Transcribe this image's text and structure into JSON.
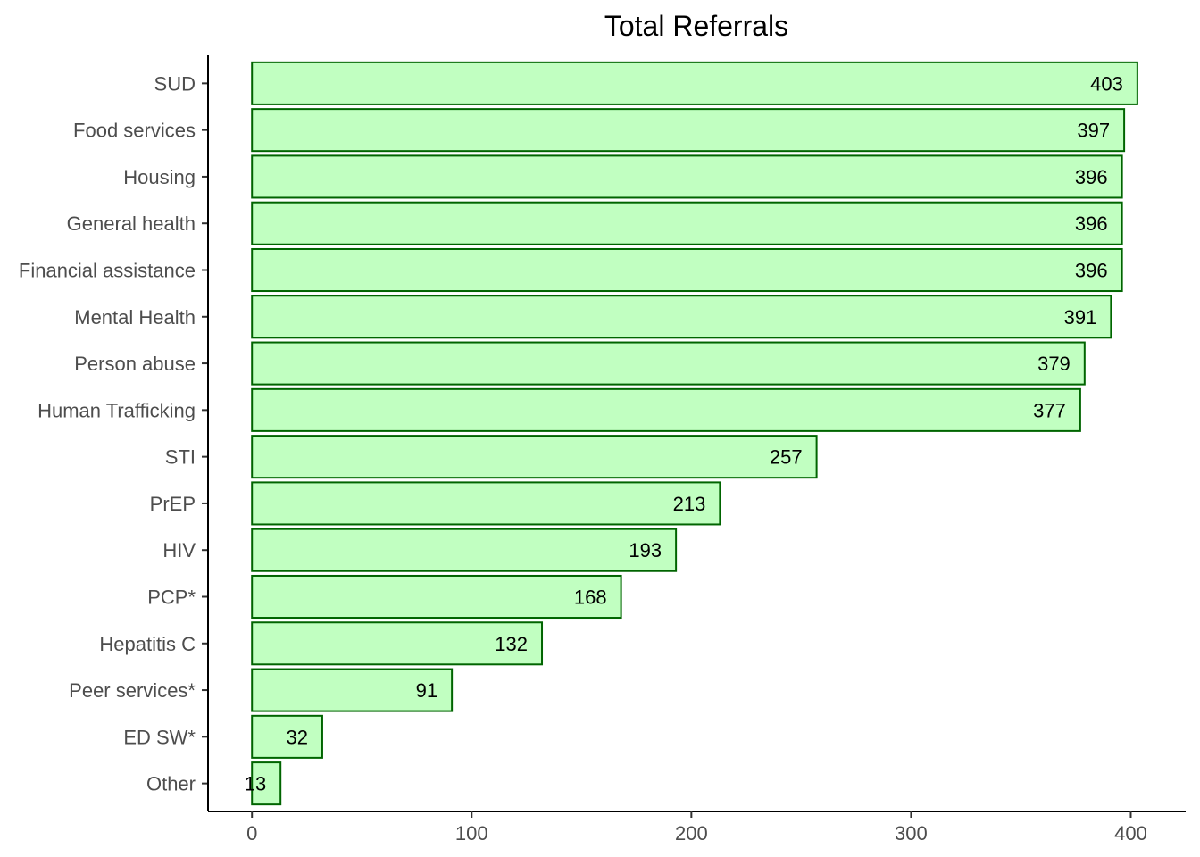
{
  "chart_data": {
    "type": "bar",
    "orientation": "horizontal",
    "title": "Total Referrals",
    "xlabel": "",
    "ylabel": "",
    "categories": [
      "SUD",
      "Food services",
      "Housing",
      "General health",
      "Financial assistance",
      "Mental Health",
      "Person abuse",
      "Human Trafficking",
      "STI",
      "PrEP",
      "HIV",
      "PCP*",
      "Hepatitis C",
      "Peer services*",
      "ED SW*",
      "Other"
    ],
    "values": [
      403,
      397,
      396,
      396,
      396,
      391,
      379,
      377,
      257,
      213,
      193,
      168,
      132,
      91,
      32,
      13
    ],
    "xlim": [
      -20,
      425
    ],
    "x_ticks": [
      0,
      100,
      200,
      300,
      400
    ],
    "grid": false,
    "legend": "none",
    "colors": {
      "bar_fill": "#c1ffc1",
      "bar_stroke": "#006400"
    }
  }
}
